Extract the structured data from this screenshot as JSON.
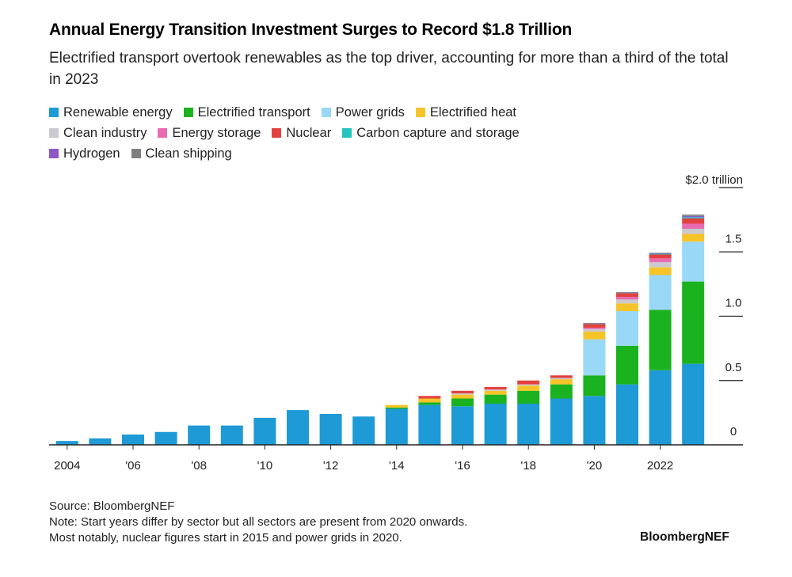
{
  "title": "Annual Energy Transition Investment Surges to Record $1.8 Trillion",
  "subtitle": "Electrified transport overtook renewables as the top driver, accounting for more than a third of the total in 2023",
  "legend_rows": [
    [
      {
        "name": "Renewable energy",
        "color": "#1e9ad6"
      },
      {
        "name": "Electrified transport",
        "color": "#1ab21f"
      },
      {
        "name": "Power grids",
        "color": "#9ad8f8"
      },
      {
        "name": "Electrified heat",
        "color": "#f6c428"
      }
    ],
    [
      {
        "name": "Clean industry",
        "color": "#c9c9cf"
      },
      {
        "name": "Energy storage",
        "color": "#e86bb0"
      },
      {
        "name": "Nuclear",
        "color": "#e3413f"
      },
      {
        "name": "Carbon capture and storage",
        "color": "#25c3be"
      }
    ],
    [
      {
        "name": "Hydrogen",
        "color": "#8e57c8"
      },
      {
        "name": "Clean shipping",
        "color": "#7f7f7f"
      }
    ]
  ],
  "chart_data": {
    "type": "bar",
    "stacked": true,
    "title": "Annual Energy Transition Investment Surges to Record $1.8 Trillion",
    "unit_label": "$2.0 trillion",
    "ylim": [
      0,
      2.0
    ],
    "y_ticks": [
      {
        "value": 0,
        "label": "0"
      },
      {
        "value": 0.5,
        "label": "0.5"
      },
      {
        "value": 1.0,
        "label": "1.0"
      },
      {
        "value": 1.5,
        "label": "1.5"
      }
    ],
    "y_axis_side": "right",
    "categories": [
      "2004",
      "2005",
      "2006",
      "2007",
      "2008",
      "2009",
      "2010",
      "2011",
      "2012",
      "2013",
      "2014",
      "2015",
      "2016",
      "2017",
      "2018",
      "2019",
      "2020",
      "2021",
      "2022",
      "2023"
    ],
    "x_tick_labels": [
      "2004",
      "",
      "'06",
      "",
      "'08",
      "",
      "'10",
      "",
      "'12",
      "",
      "'14",
      "",
      "'16",
      "",
      "'18",
      "",
      "'20",
      "",
      "2022",
      ""
    ],
    "series": [
      {
        "name": "Renewable energy",
        "values": [
          0.03,
          0.05,
          0.08,
          0.1,
          0.15,
          0.15,
          0.21,
          0.27,
          0.24,
          0.22,
          0.28,
          0.31,
          0.3,
          0.32,
          0.32,
          0.36,
          0.38,
          0.47,
          0.58,
          0.63
        ]
      },
      {
        "name": "Electrified transport",
        "values": [
          0,
          0,
          0,
          0,
          0,
          0,
          0,
          0,
          0,
          0,
          0.01,
          0.02,
          0.06,
          0.07,
          0.1,
          0.11,
          0.16,
          0.3,
          0.47,
          0.64
        ]
      },
      {
        "name": "Power grids",
        "values": [
          0,
          0,
          0,
          0,
          0,
          0,
          0,
          0,
          0,
          0,
          0,
          0,
          0,
          0,
          0,
          0,
          0.28,
          0.27,
          0.27,
          0.31
        ]
      },
      {
        "name": "Electrified heat",
        "values": [
          0,
          0,
          0,
          0,
          0,
          0,
          0,
          0,
          0,
          0,
          0.02,
          0.03,
          0.03,
          0.03,
          0.04,
          0.04,
          0.06,
          0.06,
          0.06,
          0.06
        ]
      },
      {
        "name": "Clean industry",
        "values": [
          0,
          0,
          0,
          0,
          0,
          0,
          0,
          0,
          0,
          0,
          0,
          0,
          0.01,
          0.01,
          0.01,
          0.01,
          0.02,
          0.03,
          0.04,
          0.04
        ]
      },
      {
        "name": "Energy storage",
        "values": [
          0,
          0,
          0,
          0,
          0,
          0,
          0,
          0,
          0,
          0,
          0,
          0,
          0,
          0,
          0,
          0,
          0.01,
          0.02,
          0.03,
          0.04
        ]
      },
      {
        "name": "Nuclear",
        "values": [
          0,
          0,
          0,
          0,
          0,
          0,
          0,
          0,
          0,
          0,
          0,
          0.02,
          0.02,
          0.02,
          0.03,
          0.02,
          0.03,
          0.03,
          0.03,
          0.04
        ]
      },
      {
        "name": "Carbon capture and storage",
        "values": [
          0,
          0,
          0,
          0,
          0,
          0,
          0,
          0,
          0,
          0,
          0,
          0,
          0,
          0,
          0,
          0,
          0.003,
          0.003,
          0.006,
          0.01
        ]
      },
      {
        "name": "Hydrogen",
        "values": [
          0,
          0,
          0,
          0,
          0,
          0,
          0,
          0,
          0,
          0,
          0,
          0,
          0,
          0,
          0,
          0,
          0.002,
          0.002,
          0.004,
          0.01
        ]
      },
      {
        "name": "Clean shipping",
        "values": [
          0,
          0,
          0,
          0,
          0,
          0,
          0,
          0,
          0,
          0,
          0,
          0,
          0,
          0,
          0,
          0,
          0.002,
          0.002,
          0.003,
          0.01
        ]
      }
    ],
    "colors": [
      "#1e9ad6",
      "#1ab21f",
      "#9ad8f8",
      "#f6c428",
      "#c9c9cf",
      "#e86bb0",
      "#e3413f",
      "#25c3be",
      "#8e57c8",
      "#7f7f7f"
    ]
  },
  "footer": {
    "source": "Source: BloombergNEF",
    "note_line1": "Note: Start years differ by sector but all sectors are present from 2020 onwards.",
    "note_line2": "Most notably, nuclear figures start in 2015 and power grids in 2020.",
    "brand": "BloombergNEF"
  }
}
